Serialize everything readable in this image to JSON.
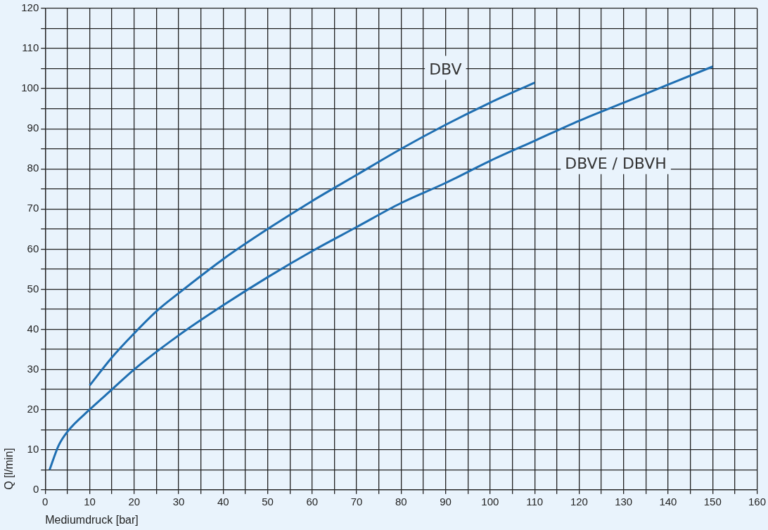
{
  "chart_data": {
    "type": "line",
    "xlabel": "Mediumdruck [bar]",
    "ylabel": "Q [l/min]",
    "xlim": [
      0,
      160
    ],
    "ylim": [
      0,
      120
    ],
    "xticks": [
      0,
      {
        "value": 5,
        "label": null
      },
      10,
      {
        "value": 15,
        "label": null
      },
      20,
      {
        "value": 25,
        "label": null
      },
      30,
      {
        "value": 35,
        "label": null
      },
      40,
      {
        "value": 45,
        "label": null
      },
      50,
      {
        "value": 55,
        "label": null
      },
      60,
      {
        "value": 65,
        "label": null
      },
      70,
      {
        "value": 75,
        "label": null
      },
      80,
      {
        "value": 85,
        "label": null
      },
      90,
      {
        "value": 95,
        "label": null
      },
      100,
      {
        "value": 105,
        "label": null
      },
      110,
      {
        "value": 115,
        "label": null
      },
      120,
      {
        "value": 125,
        "label": null
      },
      130,
      {
        "value": 135,
        "label": null
      },
      140,
      {
        "value": 145,
        "label": null
      },
      150,
      {
        "value": 155,
        "label": null
      },
      160
    ],
    "yticks": [
      0,
      {
        "value": 5,
        "label": null
      },
      10,
      {
        "value": 15,
        "label": null
      },
      20,
      {
        "value": 25,
        "label": null
      },
      30,
      {
        "value": 35,
        "label": null
      },
      40,
      {
        "value": 45,
        "label": null
      },
      50,
      {
        "value": 55,
        "label": null
      },
      60,
      {
        "value": 65,
        "label": null
      },
      70,
      {
        "value": 75,
        "label": null
      },
      80,
      {
        "value": 85,
        "label": null
      },
      90,
      {
        "value": 95,
        "label": null
      },
      100,
      {
        "value": 105,
        "label": null
      },
      110,
      {
        "value": 115,
        "label": null
      },
      120
    ],
    "grid": true,
    "legend": false,
    "marker": "none",
    "line_style": "solid",
    "series": [
      {
        "name": "DBV",
        "color": "#1f6fb2",
        "x": [
          10,
          15,
          20,
          25,
          30,
          40,
          50,
          60,
          70,
          80,
          90,
          100,
          110
        ],
        "values": [
          26,
          33,
          39,
          44.5,
          49,
          57.5,
          65,
          72,
          78.5,
          85,
          91,
          96.5,
          101.5
        ]
      },
      {
        "name": "DBVE / DBVH",
        "color": "#1f6fb2",
        "x": [
          1,
          3,
          5,
          10,
          15,
          20,
          30,
          40,
          50,
          60,
          70,
          80,
          90,
          100,
          110,
          120,
          130,
          140,
          150
        ],
        "values": [
          5,
          11,
          14.5,
          20,
          25,
          30,
          38.5,
          46,
          53,
          59.5,
          65.5,
          71.5,
          76.5,
          82,
          87,
          92,
          96.5,
          101,
          105.5
        ]
      }
    ]
  }
}
